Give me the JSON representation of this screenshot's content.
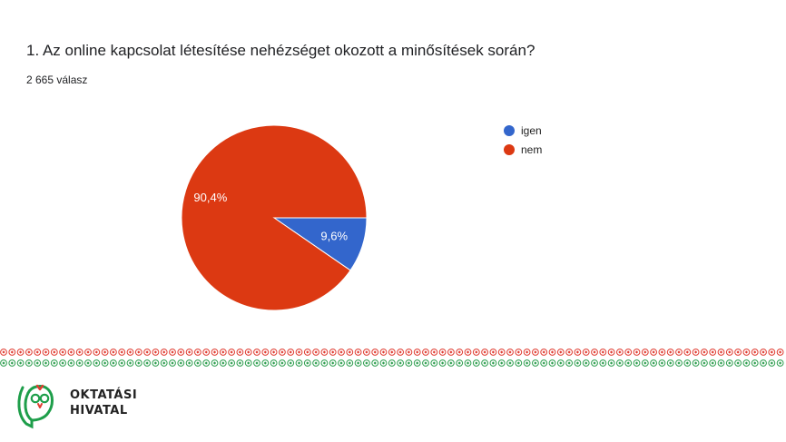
{
  "question": {
    "title": "1. Az online kapcsolat létesítése nehézséget okozott a minősítések során?",
    "responses": "2 665 válasz"
  },
  "chart_data": {
    "type": "pie",
    "categories": [
      "igen",
      "nem"
    ],
    "values": [
      9.6,
      90.4
    ],
    "value_labels": [
      "9,6%",
      "90,4%"
    ],
    "colors": [
      "#3366cc",
      "#dc3912"
    ],
    "legend_position": "right"
  },
  "logo": {
    "line1": "OKTATÁSI",
    "line2": "HIVATAL",
    "icon": "owl-icon",
    "colors": {
      "green": "#1e9e4a",
      "red": "#e03c31"
    }
  },
  "decor": {
    "border_pattern": "folk-ornament-border",
    "colors": {
      "red": "#e03c31",
      "green": "#2e9e4f"
    }
  }
}
